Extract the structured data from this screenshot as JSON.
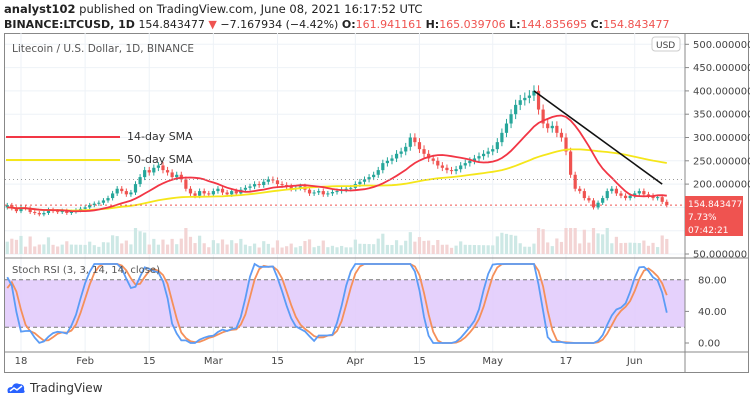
{
  "header": {
    "author": "analyst102",
    "published": "published on TradingView.com, June 08, 2021 16:17:52 UTC",
    "symbol": "BINANCE:LTCUSD, 1D",
    "last": "154.843477",
    "change": "−7.167934 (−4.42%)",
    "open_label": "O:",
    "open": "161.941161",
    "high_label": "H:",
    "high": "165.039706",
    "low_label": "L:",
    "low": "144.835695",
    "close_label": "C:",
    "close": "154.843477"
  },
  "chart_title": "Litecoin / U.S. Dollar, 1D, BINANCE",
  "currency_badge": "USD",
  "price_tag": {
    "price": "154.843477",
    "pct": "7.73%",
    "timer": "07:42:21"
  },
  "legend": [
    {
      "label": "14-day SMA",
      "color": "#f23645"
    },
    {
      "label": "50-day SMA",
      "color": "#f5e61a"
    }
  ],
  "indicator_label": "Stoch RSI (3, 3, 14, 14, close)",
  "footer_brand": "TradingView",
  "colors": {
    "up": "#26a69a",
    "down": "#ef5350",
    "k": "#5b9cf6",
    "d": "#f5905a",
    "band": "#e1c9fb"
  },
  "chart_data": {
    "type": "candlestick",
    "price_axis": {
      "ticks": [
        "50.000000",
        "100.000000",
        "150.000000",
        "200.000000",
        "250.000000",
        "300.000000",
        "350.000000",
        "400.000000",
        "450.000000",
        "500.000000"
      ],
      "range": [
        50,
        500
      ]
    },
    "stoch_axis": {
      "ticks": [
        "0.00",
        "40.00",
        "80.00"
      ],
      "range": [
        0,
        100
      ],
      "bands": [
        20,
        80
      ]
    },
    "x_ticks": [
      "18",
      "Feb",
      "15",
      "Mar",
      "15",
      "Apr",
      "15",
      "May",
      "17",
      "Jun"
    ],
    "closes": [
      145,
      150,
      155,
      148,
      142,
      150,
      148,
      140,
      138,
      135,
      138,
      145,
      142,
      140,
      143,
      138,
      141,
      144,
      147,
      150,
      155,
      158,
      160,
      165,
      170,
      180,
      190,
      185,
      178,
      182,
      200,
      215,
      230,
      225,
      235,
      240,
      230,
      225,
      215,
      220,
      210,
      190,
      180,
      175,
      185,
      180,
      178,
      185,
      190,
      182,
      178,
      185,
      180,
      188,
      192,
      195,
      200,
      198,
      205,
      210,
      208,
      200,
      198,
      195,
      190,
      192,
      195,
      188,
      180,
      182,
      185,
      178,
      180,
      183,
      185,
      188,
      190,
      192,
      200,
      205,
      210,
      215,
      220,
      230,
      245,
      250,
      255,
      265,
      270,
      280,
      300,
      290,
      275,
      265,
      255,
      250,
      240,
      235,
      230,
      228,
      232,
      240,
      245,
      250,
      255,
      260,
      265,
      270,
      275,
      290,
      310,
      330,
      350,
      370,
      380,
      385,
      390,
      400,
      360,
      330,
      320,
      325,
      310,
      300,
      270,
      220,
      190,
      185,
      170,
      165,
      150,
      160,
      170,
      185,
      190,
      180,
      175,
      170,
      175,
      180,
      185,
      178,
      175,
      170,
      172,
      162,
      154.84
    ],
    "trendline": {
      "from": {
        "day": "May 10",
        "price": 400
      },
      "to": {
        "day": "Jun 7",
        "price": 200
      }
    },
    "sma_periods": [
      14,
      50
    ]
  }
}
